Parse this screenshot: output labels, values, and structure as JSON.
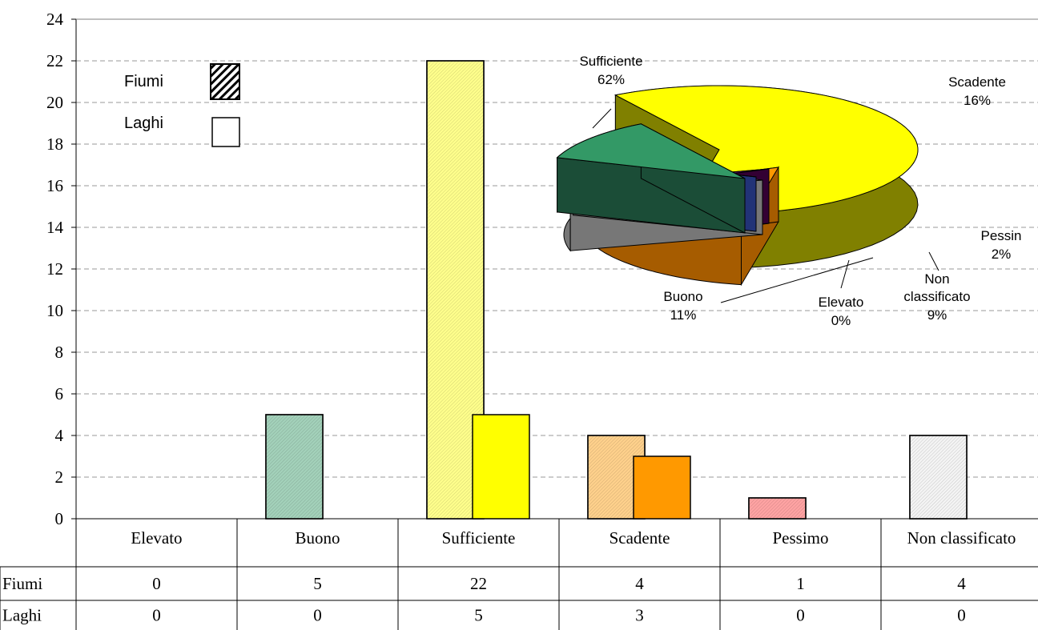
{
  "chart_data": [
    {
      "type": "bar",
      "categories": [
        "Elevato",
        "Buono",
        "Sufficiente",
        "Scadente",
        "Pessimo",
        "Non classificato"
      ],
      "series": [
        {
          "name": "Fiumi",
          "values": [
            0,
            5,
            22,
            4,
            1,
            4
          ]
        },
        {
          "name": "Laghi",
          "values": [
            0,
            0,
            5,
            3,
            0,
            0
          ]
        }
      ],
      "category_colors": [
        "#3399ff",
        "#339966",
        "#ffff00",
        "#ff9900",
        "#ff3333",
        "#e6e6e6"
      ],
      "ylim": [
        0,
        24
      ],
      "yticks": [
        0,
        2,
        4,
        6,
        8,
        10,
        12,
        14,
        16,
        18,
        20,
        22,
        24
      ],
      "grid": true,
      "legend": {
        "placement": "top-left",
        "entries": [
          "Fiumi",
          "Laghi"
        ]
      },
      "data_table": {
        "row_labels": [
          "Fiumi",
          "Laghi"
        ],
        "rows": [
          [
            0,
            5,
            22,
            4,
            1,
            4
          ],
          [
            0,
            0,
            5,
            3,
            0,
            0
          ]
        ]
      }
    },
    {
      "type": "pie",
      "style": "3d-exploded",
      "slices": [
        {
          "label": "Sufficiente",
          "line1": "Sufficiente",
          "line2": "",
          "percent_text": "62%",
          "value": 62,
          "color": "#ffff00",
          "side": "#808000"
        },
        {
          "label": "Scadente",
          "line1": "Scadente",
          "line2": "",
          "percent_text": "16%",
          "value": 16,
          "color": "#ff9900",
          "side": "#a65c00"
        },
        {
          "label": "Pessimo",
          "line1": "Pessin",
          "line2": "",
          "percent_text": "2%",
          "value": 2,
          "color": "#660066",
          "side": "#330033"
        },
        {
          "label": "Non classificato",
          "line1": "Non",
          "line2": "classificato",
          "percent_text": "9%",
          "value": 9,
          "color": "#e0e0e0",
          "side": "#777777"
        },
        {
          "label": "Elevato",
          "line1": "Elevato",
          "line2": "",
          "percent_text": "0%",
          "value": 0.4,
          "color": "#3366cc",
          "side": "#223377"
        },
        {
          "label": "Buono",
          "line1": "Buono",
          "line2": "",
          "percent_text": "11%",
          "value": 11,
          "color": "#339966",
          "side": "#1b4d37"
        }
      ]
    }
  ]
}
